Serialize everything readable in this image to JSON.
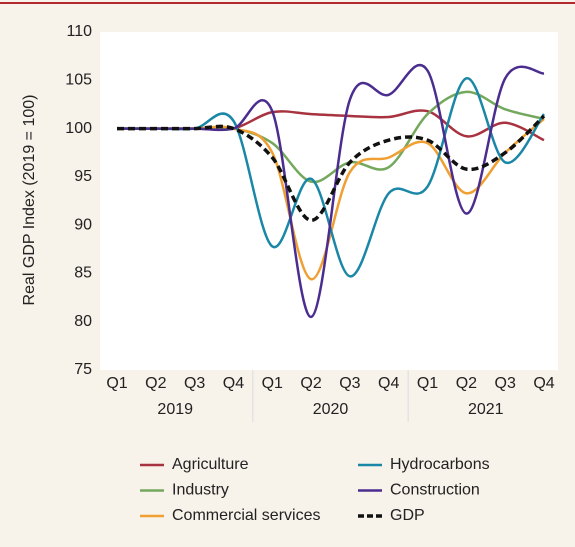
{
  "chart_data": {
    "type": "line",
    "y_label": "Real GDP Index (2019 = 100)",
    "categories": [
      "Q1",
      "Q2",
      "Q3",
      "Q4",
      "Q1",
      "Q2",
      "Q3",
      "Q4",
      "Q1",
      "Q2",
      "Q3",
      "Q4"
    ],
    "years": [
      "2019",
      "2020",
      "2021"
    ],
    "ylim": [
      75,
      110
    ],
    "yticks": [
      75,
      80,
      85,
      90,
      95,
      100,
      105,
      110
    ],
    "grid": false,
    "legend": "bottom",
    "series": [
      {
        "name": "Agriculture",
        "color": "#a8323f",
        "style": "solid",
        "values": [
          100,
          100,
          100,
          100,
          101.7,
          101.5,
          101.3,
          101.2,
          101.8,
          99.2,
          100.6,
          98.8
        ]
      },
      {
        "name": "Industry",
        "color": "#74a85c",
        "style": "solid",
        "values": [
          100,
          100,
          100,
          100,
          98.5,
          94.5,
          96.5,
          96,
          101.5,
          103.8,
          102,
          101
        ]
      },
      {
        "name": "Commercial services",
        "color": "#f0a032",
        "style": "solid",
        "values": [
          100,
          100,
          100,
          100,
          97.5,
          84.4,
          95.5,
          97,
          98.5,
          93.3,
          97.5,
          101
        ]
      },
      {
        "name": "Hydrocarbons",
        "color": "#1a87a6",
        "style": "solid",
        "values": [
          100,
          100,
          100,
          100.8,
          87.8,
          94.8,
          84.7,
          93.3,
          94,
          105.2,
          96.5,
          101.5
        ]
      },
      {
        "name": "Construction",
        "color": "#4b2d8f",
        "style": "solid",
        "values": [
          100,
          100,
          100,
          100,
          101.8,
          80.5,
          103,
          103.5,
          106,
          91.2,
          105.2,
          105.7
        ]
      },
      {
        "name": "GDP",
        "color": "#111111",
        "style": "dashed",
        "values": [
          100,
          100,
          100,
          100,
          97,
          90.5,
          96.5,
          98.8,
          98.8,
          95.8,
          97.5,
          101.3
        ]
      }
    ]
  }
}
